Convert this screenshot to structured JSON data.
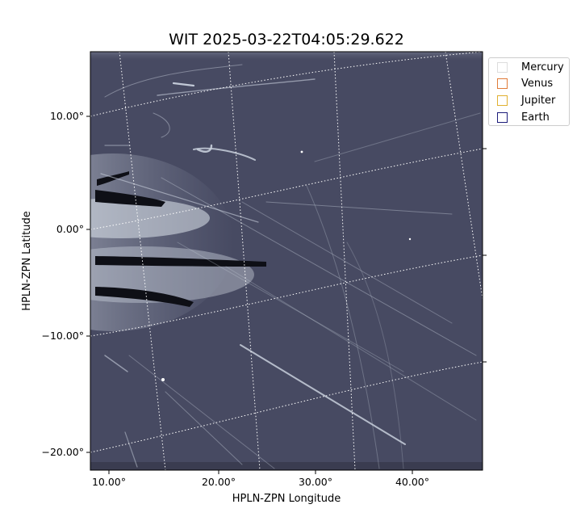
{
  "title": "WIT 2025-03-22T04:05:29.622",
  "axes": {
    "xlabel": "HPLN-ZPN Longitude",
    "ylabel": "HPLN-ZPN Latitude",
    "x_ticks": [
      "10.00°",
      "20.00°",
      "30.00°",
      "40.00°"
    ],
    "y_ticks": [
      "10.00°",
      "0.00°",
      "−10.00°",
      "−20.00°"
    ]
  },
  "legend": {
    "items": [
      {
        "label": "Mercury",
        "color": "#dddddd"
      },
      {
        "label": "Venus",
        "color": "#e07b39"
      },
      {
        "label": "Jupiter",
        "color": "#e0b030"
      },
      {
        "label": "Earth",
        "color": "#1c1c7a"
      }
    ]
  },
  "image": {
    "colormap": "bone",
    "background": "#474a62",
    "grid": "dotted white"
  }
}
